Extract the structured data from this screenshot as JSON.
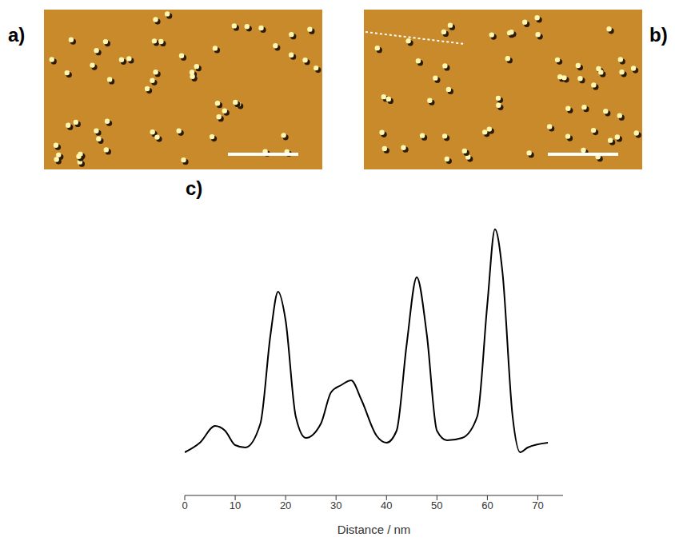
{
  "panel_labels": [
    "a)",
    "b)",
    "c)"
  ],
  "chart_data": {
    "type": "line",
    "x_label": "Distance / nm",
    "x": [
      0,
      3,
      6,
      8,
      10,
      12,
      15,
      17,
      18.5,
      20,
      22,
      24,
      27,
      29,
      31,
      33,
      35,
      38,
      40,
      42,
      44,
      46,
      48,
      50,
      52,
      55,
      58,
      60,
      61.5,
      63,
      65,
      66.5,
      68,
      72
    ],
    "values": [
      0.18,
      0.22,
      0.29,
      0.27,
      0.21,
      0.2,
      0.3,
      0.67,
      0.85,
      0.73,
      0.33,
      0.24,
      0.3,
      0.43,
      0.46,
      0.48,
      0.4,
      0.25,
      0.22,
      0.27,
      0.63,
      0.91,
      0.67,
      0.27,
      0.23,
      0.24,
      0.33,
      0.8,
      1.11,
      0.93,
      0.33,
      0.18,
      0.2,
      0.22
    ],
    "color": "#000000",
    "xlim": [
      0,
      75
    ],
    "xticks": [
      0,
      10,
      20,
      30,
      40,
      50,
      60,
      70
    ],
    "tick_labels": "x",
    "grid": false
  }
}
